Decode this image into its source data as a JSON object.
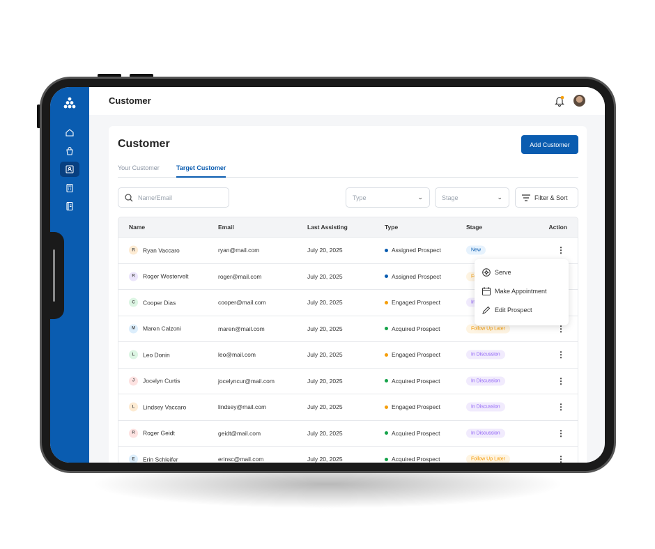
{
  "header": {
    "title": "Customer"
  },
  "sidebar": {
    "items": [
      "home-icon",
      "bag-icon",
      "contact-icon",
      "calculator-icon",
      "notebook-icon"
    ],
    "active": 2
  },
  "page": {
    "title": "Customer",
    "add_button": "Add Customer"
  },
  "tabs": [
    {
      "label": "Your Customer",
      "active": false
    },
    {
      "label": "Target Customer",
      "active": true
    }
  ],
  "filters": {
    "search_placeholder": "Name/Email",
    "type": "Type",
    "stage": "Stage",
    "filter_sort": "Filter & Sort"
  },
  "table": {
    "columns": [
      "Name",
      "Email",
      "Last Assisting",
      "Type",
      "Stage",
      "Action"
    ],
    "rows": [
      {
        "initial": "R",
        "name": "Ryan Vaccaro",
        "email": "ryan@mail.com",
        "date": "July 20, 2025",
        "type": "Assigned Prospect",
        "stage": "New"
      },
      {
        "initial": "R",
        "name": "Roger Westervelt",
        "email": "roger@mail.com",
        "date": "July 20, 2025",
        "type": "Assigned Prospect",
        "stage": "Follow Up Later"
      },
      {
        "initial": "C",
        "name": "Cooper Dias",
        "email": "cooper@mail.com",
        "date": "July 20, 2025",
        "type": "Engaged Prospect",
        "stage": "In Discussion"
      },
      {
        "initial": "M",
        "name": "Maren Calzoni",
        "email": "maren@mail.com",
        "date": "July 20, 2025",
        "type": "Acquired Prospect",
        "stage": "Follow Up Later"
      },
      {
        "initial": "L",
        "name": "Leo Donin",
        "email": "leo@mail.com",
        "date": "July 20, 2025",
        "type": "Engaged Prospect",
        "stage": "In Discussion"
      },
      {
        "initial": "J",
        "name": "Jocelyn Curtis",
        "email": "jocelyncur@mail.com",
        "date": "July 20, 2025",
        "type": "Acquired Prospect",
        "stage": "In Discussion"
      },
      {
        "initial": "L",
        "name": "Lindsey Vaccaro",
        "email": "lindsey@mail.com",
        "date": "July 20, 2025",
        "type": "Engaged Prospect",
        "stage": "In Discussion"
      },
      {
        "initial": "R",
        "name": "Roger Geidt",
        "email": "geidt@mail.com",
        "date": "July 20, 2025",
        "type": "Acquired Prospect",
        "stage": "In Discussion"
      },
      {
        "initial": "E",
        "name": "Erin Schleifer",
        "email": "erinsc@mail.com",
        "date": "July 20, 2025",
        "type": "Acquired Prospect",
        "stage": "Follow Up Later"
      }
    ]
  },
  "context_menu": {
    "items": [
      "Serve",
      "Make Appointment",
      "Edit Prospect"
    ]
  },
  "colors": {
    "brand": "#0a5cb0",
    "assigned": "#0a5cb0",
    "engaged": "#f59e0b",
    "acquired": "#16a34a"
  }
}
